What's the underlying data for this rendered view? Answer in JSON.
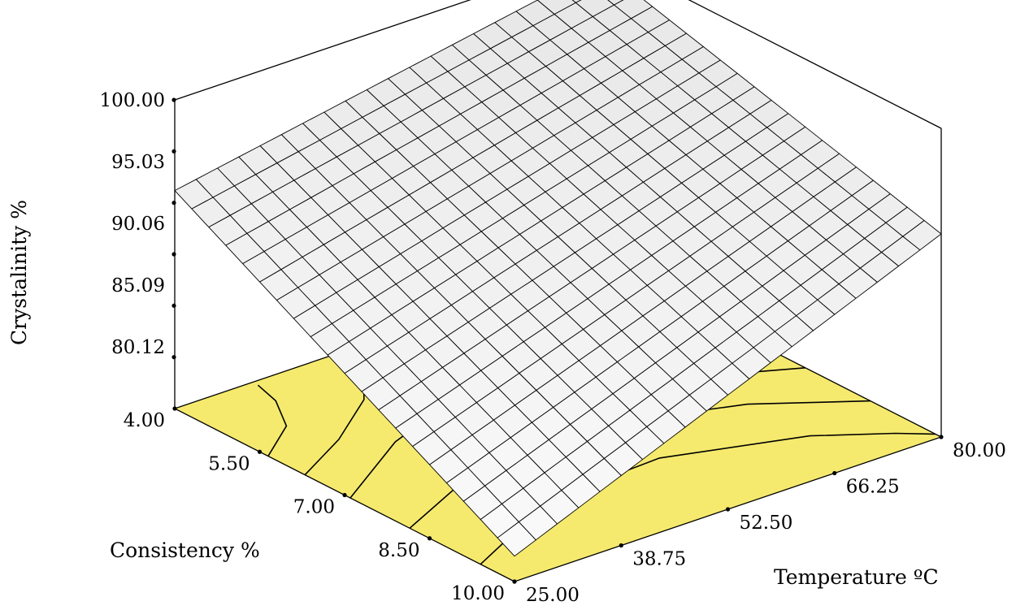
{
  "chart_data": {
    "type": "surface3d",
    "title": "",
    "zlabel": "Crystalinity %",
    "ylabel": "Consistency %",
    "xlabel": "Temperature ºC",
    "z_ticks": [
      "100.00",
      "95.03",
      "90.06",
      "85.09",
      "80.12"
    ],
    "consistency_ticks": [
      "4.00",
      "5.50",
      "7.00",
      "8.50",
      "10.00"
    ],
    "temperature_ticks": [
      "25.00",
      "38.75",
      "52.50",
      "66.25",
      "80.00"
    ],
    "x_range": [
      25,
      80
    ],
    "y_range": [
      4,
      10
    ],
    "z_range": [
      75.15,
      100
    ],
    "mesh_divisions": 20,
    "surface_color": "#ffffff",
    "floor_color": "#f5ea6e",
    "surface_corners": [
      {
        "temperature": 80,
        "consistency": 4,
        "crystallinity": 99.1
      },
      {
        "temperature": 80,
        "consistency": 10,
        "crystallinity": 91.5
      },
      {
        "temperature": 25,
        "consistency": 4,
        "crystallinity": 92.7
      },
      {
        "temperature": 25,
        "consistency": 10,
        "crystallinity": 77.2
      }
    ]
  }
}
